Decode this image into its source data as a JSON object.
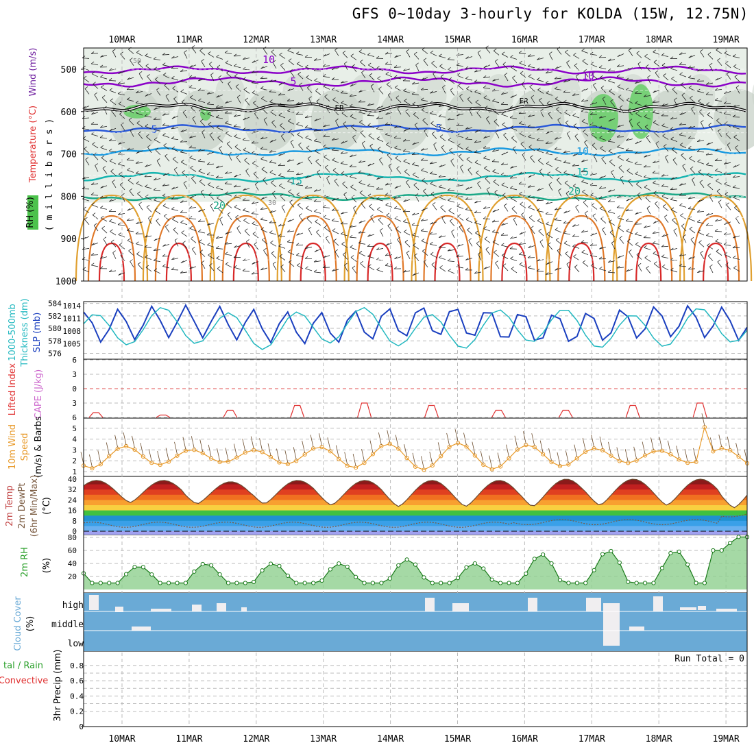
{
  "title": "GFS 0~10day 3-hourly for KOLDA (15W, 12.75N)",
  "days": [
    "10MAR",
    "11MAR",
    "12MAR",
    "13MAR",
    "14MAR",
    "15MAR",
    "16MAR",
    "17MAR",
    "18MAR",
    "19MAR"
  ],
  "colors": {
    "wind10": "#8a00c8",
    "wind5": "#8a00c8",
    "fr": "#000000",
    "t5": "#2a59d9",
    "t10": "#1a9ae0",
    "t15": "#17b5b0",
    "t20": "#1aa887",
    "rh_dark": "#c8d2c8",
    "rh_green": "#66cc66",
    "slp": "#1a3fbf",
    "thickness": "#22b8c0",
    "lifted": "#e03030",
    "cape": "#cc66cc",
    "wind_speed": "#e89a2a",
    "rh2m": "#2aa02a",
    "cloud": "#6aaad6",
    "tick_gray": "#bbbbbb"
  },
  "panels": {
    "upper": {
      "ylabels": [
        "500",
        "600",
        "700",
        "800",
        "900",
        "1000"
      ],
      "rh_label": "RH (%)",
      "temp_label": "Temperature (°C)",
      "wind_label": "Wind (m/s)",
      "p_label": "( m i l l i b a r s )",
      "contour_labels": {
        "c10": "10",
        "c5a": "5",
        "c5b": "5",
        "c5c": "5",
        "c10b": "10",
        "c15a": "15",
        "c15b": "15",
        "c20a": "20",
        "c20b": "20",
        "fr1": "FR",
        "fr2": "FR",
        "r50": "50",
        "r30": "30"
      }
    },
    "slp": {
      "ylabels_left": [
        "584",
        "582",
        "580",
        "578",
        "576"
      ],
      "ylabels_right": [
        "1014",
        "1011",
        "1008",
        "1005"
      ],
      "label1": "1000-500mb",
      "label2": "Thickness (dm)",
      "label3": "SLP (mb)"
    },
    "lifted": {
      "ylabels": [
        "6",
        "3",
        "0",
        "3",
        "6"
      ],
      "label1": "Lifted Index",
      "label2": "CAPE (J/kg)"
    },
    "wind10m": {
      "ylabels": [
        "5",
        "4",
        "3",
        "2",
        "1"
      ],
      "label1": "10m Wind",
      "label2": "Speed",
      "label3": "(m/s) & Barbs"
    },
    "temp2m": {
      "ylabels": [
        "40",
        "32",
        "24",
        "16",
        "8",
        "0"
      ],
      "label1": "2m Temp",
      "label2": "2m DewPt",
      "label3": "(6hr Min/Max)",
      "label4": "(°C)"
    },
    "rh2m": {
      "ylabels": [
        "80",
        "60",
        "40",
        "20"
      ],
      "label1": "2m RH",
      "label2": "(%)"
    },
    "cloud": {
      "ylabels": [
        "high",
        "middle",
        "low"
      ],
      "label1": "Cloud Cover",
      "label2": "(%)"
    },
    "precip": {
      "ylabels": [
        "0.8",
        "0.6",
        "0.4",
        "0.2",
        "0"
      ],
      "run_total": "Run Total = 0",
      "label1": "tal / Rain",
      "label2": "Convective",
      "label3": "3hr Precip (mm)"
    }
  },
  "chart_data": {
    "type": "line",
    "x_dates": [
      "10MAR",
      "11MAR",
      "12MAR",
      "13MAR",
      "14MAR",
      "15MAR",
      "16MAR",
      "17MAR",
      "18MAR",
      "19MAR"
    ],
    "temp2m_max": [
      39,
      38,
      39,
      39,
      39,
      39,
      40,
      40,
      40,
      39
    ],
    "temp2m_min": [
      22,
      21,
      21,
      20,
      19,
      19,
      19,
      20,
      20,
      18
    ],
    "rh2m_max": [
      36,
      40,
      40,
      40,
      46,
      40,
      54,
      60,
      60,
      82
    ],
    "rh2m_min": [
      10,
      10,
      10,
      10,
      10,
      10,
      10,
      10,
      10,
      60
    ],
    "slp_range_mb": [
      1005,
      1014
    ],
    "thickness_range_dm": [
      576,
      584
    ],
    "wind10m_speed_range": [
      1,
      5.2
    ],
    "precip_run_total_mm": 0
  }
}
